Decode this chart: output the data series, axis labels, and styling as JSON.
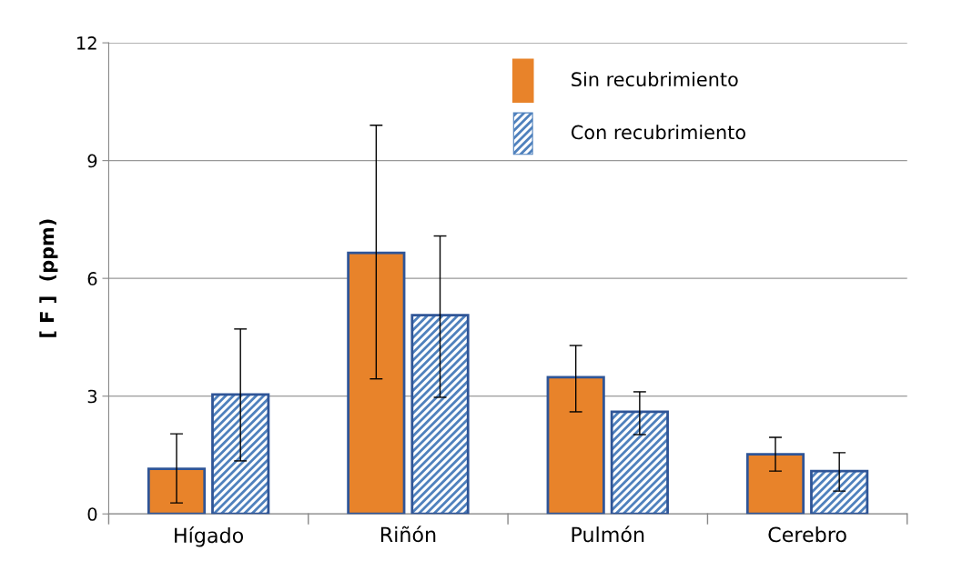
{
  "chart_data": {
    "type": "bar",
    "ylabel": "[ F ]  (ppm)",
    "categories": [
      "Hígado",
      "Riñón",
      "Pulmón",
      "Cerebro"
    ],
    "series": [
      {
        "name": "Sin recubrimiento",
        "color": "#e8832a",
        "values": [
          1.15,
          6.65,
          3.48,
          1.52
        ],
        "errors": [
          [
            0.28,
            2.04
          ],
          [
            3.44,
            9.9
          ],
          [
            2.6,
            4.29
          ],
          [
            1.09,
            1.95
          ]
        ]
      },
      {
        "name": "Con recubrimiento",
        "color": "#4f81bd",
        "values": [
          3.04,
          5.06,
          2.6,
          1.09
        ],
        "errors": [
          [
            1.35,
            4.71
          ],
          [
            2.97,
            7.08
          ],
          [
            2.02,
            3.11
          ],
          [
            0.58,
            1.56
          ]
        ]
      }
    ],
    "ylim": [
      0,
      12
    ],
    "yticks": [
      0,
      3,
      6,
      9,
      12
    ],
    "grid": "y",
    "legend": "top right"
  }
}
